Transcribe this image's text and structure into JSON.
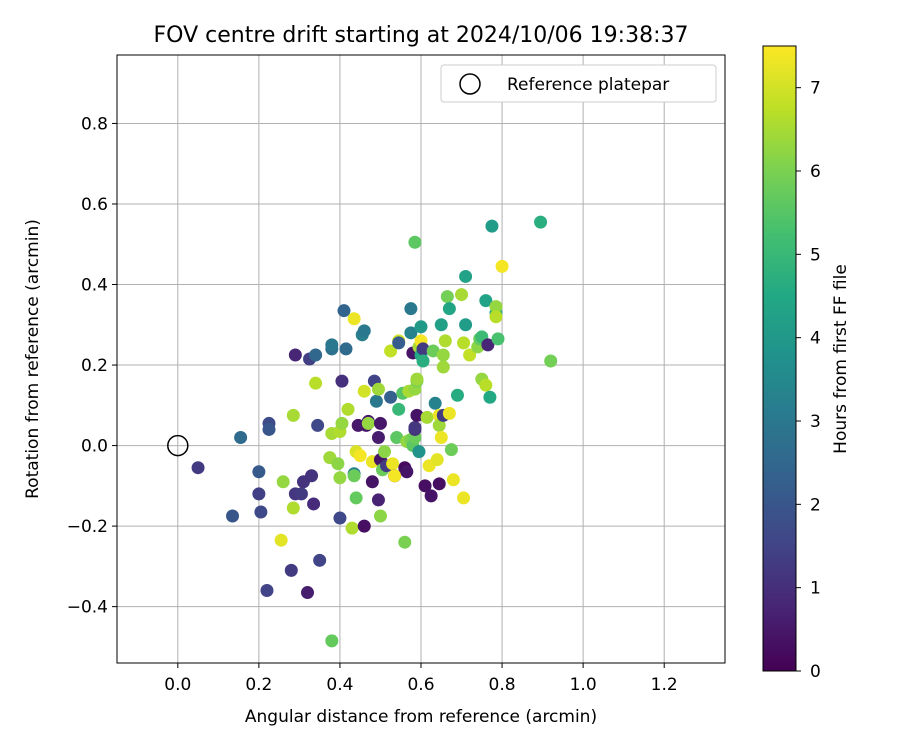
{
  "chart_data": {
    "type": "scatter",
    "title": "FOV centre drift starting at 2024/10/06 19:38:37",
    "xlabel": "Angular distance from reference (arcmin)",
    "ylabel": "Rotation from reference (arcmin)",
    "xlim": [
      -0.15,
      1.35
    ],
    "ylim": [
      -0.54,
      0.97
    ],
    "x_ticks": [
      0.0,
      0.2,
      0.4,
      0.6,
      0.8,
      1.0,
      1.2
    ],
    "x_tick_labels": [
      "0.0",
      "0.2",
      "0.4",
      "0.6",
      "0.8",
      "1.0",
      "1.2"
    ],
    "y_ticks": [
      -0.4,
      -0.2,
      0.0,
      0.2,
      0.4,
      0.6,
      0.8
    ],
    "y_tick_labels": [
      "−0.4",
      "−0.2",
      "0.0",
      "0.2",
      "0.4",
      "0.6",
      "0.8"
    ],
    "grid": true,
    "legend": {
      "position": "top-right",
      "entries": [
        "Reference platepar"
      ]
    },
    "reference_point": {
      "x": 0.0,
      "y": 0.0
    },
    "colorbar": {
      "label": "Hours from first FF file",
      "colormap": "viridis",
      "range": [
        0,
        7.5
      ],
      "ticks": [
        0,
        1,
        2,
        3,
        4,
        5,
        6,
        7
      ],
      "tick_labels": [
        "0",
        "1",
        "2",
        "3",
        "4",
        "5",
        "6",
        "7"
      ]
    },
    "points": [
      {
        "x": 0.05,
        "y": -0.055,
        "c": 1.3
      },
      {
        "x": 0.135,
        "y": -0.175,
        "c": 2.0
      },
      {
        "x": 0.155,
        "y": 0.02,
        "c": 2.6
      },
      {
        "x": 0.2,
        "y": -0.065,
        "c": 2.1
      },
      {
        "x": 0.2,
        "y": -0.12,
        "c": 1.4
      },
      {
        "x": 0.205,
        "y": -0.165,
        "c": 1.6
      },
      {
        "x": 0.22,
        "y": -0.36,
        "c": 1.5
      },
      {
        "x": 0.225,
        "y": 0.055,
        "c": 1.7
      },
      {
        "x": 0.225,
        "y": 0.04,
        "c": 2.0
      },
      {
        "x": 0.255,
        "y": -0.235,
        "c": 7.2
      },
      {
        "x": 0.26,
        "y": -0.09,
        "c": 6.3
      },
      {
        "x": 0.28,
        "y": -0.31,
        "c": 1.3
      },
      {
        "x": 0.285,
        "y": 0.075,
        "c": 6.5
      },
      {
        "x": 0.285,
        "y": -0.155,
        "c": 6.6
      },
      {
        "x": 0.29,
        "y": 0.225,
        "c": 0.8
      },
      {
        "x": 0.29,
        "y": -0.12,
        "c": 1.2
      },
      {
        "x": 0.305,
        "y": -0.12,
        "c": 1.3
      },
      {
        "x": 0.31,
        "y": -0.09,
        "c": 1.1
      },
      {
        "x": 0.32,
        "y": -0.365,
        "c": 0.6
      },
      {
        "x": 0.325,
        "y": 0.215,
        "c": 1.4
      },
      {
        "x": 0.33,
        "y": -0.075,
        "c": 1.1
      },
      {
        "x": 0.335,
        "y": -0.145,
        "c": 0.9
      },
      {
        "x": 0.34,
        "y": 0.225,
        "c": 2.5
      },
      {
        "x": 0.34,
        "y": 0.155,
        "c": 6.7
      },
      {
        "x": 0.345,
        "y": 0.05,
        "c": 1.6
      },
      {
        "x": 0.35,
        "y": -0.285,
        "c": 1.5
      },
      {
        "x": 0.375,
        "y": -0.03,
        "c": 6.4
      },
      {
        "x": 0.38,
        "y": 0.24,
        "c": 2.8
      },
      {
        "x": 0.38,
        "y": 0.25,
        "c": 3.0
      },
      {
        "x": 0.38,
        "y": 0.03,
        "c": 6.5
      },
      {
        "x": 0.38,
        "y": -0.485,
        "c": 5.7
      },
      {
        "x": 0.395,
        "y": -0.045,
        "c": 6.2
      },
      {
        "x": 0.4,
        "y": -0.08,
        "c": 6.3
      },
      {
        "x": 0.4,
        "y": -0.18,
        "c": 1.6
      },
      {
        "x": 0.4,
        "y": 0.035,
        "c": 6.6
      },
      {
        "x": 0.405,
        "y": 0.16,
        "c": 1.0
      },
      {
        "x": 0.405,
        "y": 0.055,
        "c": 6.3
      },
      {
        "x": 0.41,
        "y": 0.335,
        "c": 2.4
      },
      {
        "x": 0.415,
        "y": 0.24,
        "c": 2.6
      },
      {
        "x": 0.42,
        "y": 0.09,
        "c": 6.6
      },
      {
        "x": 0.43,
        "y": -0.205,
        "c": 6.6
      },
      {
        "x": 0.435,
        "y": 0.315,
        "c": 7.3
      },
      {
        "x": 0.435,
        "y": -0.07,
        "c": 3.2
      },
      {
        "x": 0.435,
        "y": -0.075,
        "c": 5.8
      },
      {
        "x": 0.44,
        "y": -0.13,
        "c": 5.7
      },
      {
        "x": 0.44,
        "y": -0.015,
        "c": 7.1
      },
      {
        "x": 0.445,
        "y": 0.05,
        "c": 0.5
      },
      {
        "x": 0.45,
        "y": -0.025,
        "c": 7.4
      },
      {
        "x": 0.455,
        "y": 0.275,
        "c": 3.2
      },
      {
        "x": 0.46,
        "y": 0.285,
        "c": 3.0
      },
      {
        "x": 0.46,
        "y": 0.135,
        "c": 7.0
      },
      {
        "x": 0.46,
        "y": -0.2,
        "c": 0.3
      },
      {
        "x": 0.465,
        "y": 0.05,
        "c": 0.5
      },
      {
        "x": 0.47,
        "y": 0.06,
        "c": 0.5
      },
      {
        "x": 0.47,
        "y": 0.055,
        "c": 6.3
      },
      {
        "x": 0.48,
        "y": -0.04,
        "c": 7.3
      },
      {
        "x": 0.48,
        "y": -0.09,
        "c": 0.4
      },
      {
        "x": 0.485,
        "y": 0.16,
        "c": 1.5
      },
      {
        "x": 0.49,
        "y": 0.11,
        "c": 3.0
      },
      {
        "x": 0.495,
        "y": 0.02,
        "c": 0.6
      },
      {
        "x": 0.495,
        "y": -0.135,
        "c": 0.7
      },
      {
        "x": 0.495,
        "y": 0.14,
        "c": 6.4
      },
      {
        "x": 0.5,
        "y": -0.175,
        "c": 6.2
      },
      {
        "x": 0.5,
        "y": 0.055,
        "c": 0.5
      },
      {
        "x": 0.5,
        "y": -0.035,
        "c": 0.4
      },
      {
        "x": 0.505,
        "y": -0.06,
        "c": 5.8
      },
      {
        "x": 0.51,
        "y": -0.015,
        "c": 6.2
      },
      {
        "x": 0.515,
        "y": -0.05,
        "c": 1.3
      },
      {
        "x": 0.525,
        "y": 0.235,
        "c": 6.8
      },
      {
        "x": 0.525,
        "y": 0.12,
        "c": 2.3
      },
      {
        "x": 0.53,
        "y": -0.045,
        "c": 7.3
      },
      {
        "x": 0.535,
        "y": -0.075,
        "c": 0.5
      },
      {
        "x": 0.535,
        "y": -0.075,
        "c": 7.4
      },
      {
        "x": 0.54,
        "y": 0.02,
        "c": 5.6
      },
      {
        "x": 0.545,
        "y": 0.26,
        "c": 7.0
      },
      {
        "x": 0.545,
        "y": 0.255,
        "c": 2.2
      },
      {
        "x": 0.545,
        "y": 0.09,
        "c": 5.0
      },
      {
        "x": 0.555,
        "y": 0.13,
        "c": 5.5
      },
      {
        "x": 0.56,
        "y": -0.24,
        "c": 6.0
      },
      {
        "x": 0.56,
        "y": -0.055,
        "c": 0.2
      },
      {
        "x": 0.565,
        "y": -0.065,
        "c": 0.4
      },
      {
        "x": 0.565,
        "y": 0.01,
        "c": 6.3
      },
      {
        "x": 0.57,
        "y": 0.135,
        "c": 6.5
      },
      {
        "x": 0.575,
        "y": 0.34,
        "c": 3.0
      },
      {
        "x": 0.575,
        "y": 0.28,
        "c": 3.3
      },
      {
        "x": 0.575,
        "y": 0.015,
        "c": 6.0
      },
      {
        "x": 0.58,
        "y": 0.23,
        "c": 0.4
      },
      {
        "x": 0.58,
        "y": 0.0,
        "c": 5.6
      },
      {
        "x": 0.585,
        "y": 0.505,
        "c": 5.6
      },
      {
        "x": 0.585,
        "y": 0.02,
        "c": 5.8
      },
      {
        "x": 0.585,
        "y": 0.14,
        "c": 6.3
      },
      {
        "x": 0.585,
        "y": 0.04,
        "c": 1.0
      },
      {
        "x": 0.585,
        "y": 0.045,
        "c": 1.2
      },
      {
        "x": 0.59,
        "y": 0.16,
        "c": 6.0
      },
      {
        "x": 0.59,
        "y": 0.165,
        "c": 6.4
      },
      {
        "x": 0.59,
        "y": 0.075,
        "c": 0.4
      },
      {
        "x": 0.595,
        "y": 0.245,
        "c": 6.5
      },
      {
        "x": 0.595,
        "y": -0.015,
        "c": 3.8
      },
      {
        "x": 0.6,
        "y": 0.295,
        "c": 4.0
      },
      {
        "x": 0.6,
        "y": 0.225,
        "c": 4.5
      },
      {
        "x": 0.6,
        "y": 0.26,
        "c": 7.4
      },
      {
        "x": 0.605,
        "y": 0.24,
        "c": 1.3
      },
      {
        "x": 0.605,
        "y": 0.21,
        "c": 4.7
      },
      {
        "x": 0.61,
        "y": -0.1,
        "c": 0.3
      },
      {
        "x": 0.615,
        "y": 0.07,
        "c": 6.5
      },
      {
        "x": 0.62,
        "y": -0.05,
        "c": 7.3
      },
      {
        "x": 0.625,
        "y": -0.125,
        "c": 0.4
      },
      {
        "x": 0.63,
        "y": 0.235,
        "c": 5.8
      },
      {
        "x": 0.635,
        "y": 0.105,
        "c": 3.3
      },
      {
        "x": 0.64,
        "y": -0.035,
        "c": 7.2
      },
      {
        "x": 0.645,
        "y": 0.075,
        "c": 7.3
      },
      {
        "x": 0.645,
        "y": 0.05,
        "c": 6.4
      },
      {
        "x": 0.645,
        "y": -0.095,
        "c": 0.3
      },
      {
        "x": 0.65,
        "y": 0.3,
        "c": 4.2
      },
      {
        "x": 0.65,
        "y": 0.02,
        "c": 7.3
      },
      {
        "x": 0.655,
        "y": 0.075,
        "c": 1.3
      },
      {
        "x": 0.655,
        "y": 0.195,
        "c": 6.4
      },
      {
        "x": 0.655,
        "y": 0.225,
        "c": 6.3
      },
      {
        "x": 0.66,
        "y": 0.26,
        "c": 6.6
      },
      {
        "x": 0.665,
        "y": 0.37,
        "c": 5.9
      },
      {
        "x": 0.67,
        "y": 0.34,
        "c": 4.4
      },
      {
        "x": 0.67,
        "y": 0.08,
        "c": 7.3
      },
      {
        "x": 0.675,
        "y": -0.01,
        "c": 5.8
      },
      {
        "x": 0.68,
        "y": -0.085,
        "c": 7.3
      },
      {
        "x": 0.69,
        "y": 0.125,
        "c": 4.6
      },
      {
        "x": 0.7,
        "y": 0.375,
        "c": 6.5
      },
      {
        "x": 0.705,
        "y": 0.255,
        "c": 6.7
      },
      {
        "x": 0.705,
        "y": -0.13,
        "c": 7.3
      },
      {
        "x": 0.71,
        "y": 0.42,
        "c": 4.3
      },
      {
        "x": 0.71,
        "y": 0.3,
        "c": 4.1
      },
      {
        "x": 0.72,
        "y": 0.225,
        "c": 6.8
      },
      {
        "x": 0.74,
        "y": 0.245,
        "c": 6.2
      },
      {
        "x": 0.745,
        "y": 0.265,
        "c": 5.7
      },
      {
        "x": 0.75,
        "y": 0.27,
        "c": 5.1
      },
      {
        "x": 0.75,
        "y": 0.165,
        "c": 6.3
      },
      {
        "x": 0.76,
        "y": 0.36,
        "c": 4.3
      },
      {
        "x": 0.76,
        "y": 0.15,
        "c": 6.7
      },
      {
        "x": 0.765,
        "y": 0.25,
        "c": 0.8
      },
      {
        "x": 0.77,
        "y": 0.12,
        "c": 4.5
      },
      {
        "x": 0.775,
        "y": 0.545,
        "c": 4.1
      },
      {
        "x": 0.785,
        "y": 0.33,
        "c": 4.7
      },
      {
        "x": 0.785,
        "y": 0.345,
        "c": 6.3
      },
      {
        "x": 0.79,
        "y": 0.265,
        "c": 5.3
      },
      {
        "x": 0.785,
        "y": 0.32,
        "c": 6.7
      },
      {
        "x": 0.8,
        "y": 0.445,
        "c": 7.4
      },
      {
        "x": 0.895,
        "y": 0.555,
        "c": 4.7
      },
      {
        "x": 0.92,
        "y": 0.21,
        "c": 5.9
      }
    ]
  }
}
